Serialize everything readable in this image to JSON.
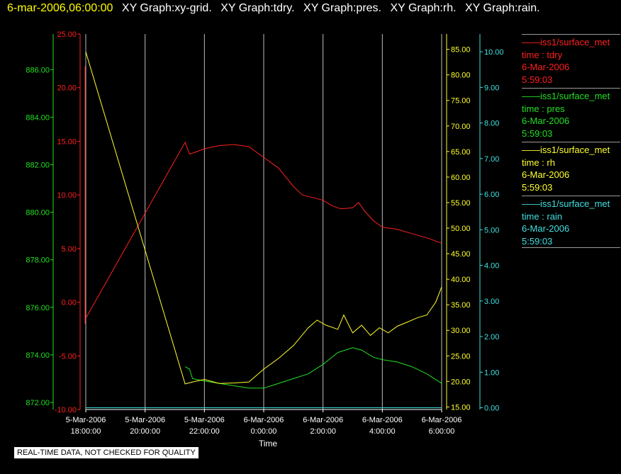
{
  "header": {
    "date": "6-mar-2006,06:00:00",
    "items": [
      "XY Graph:xy-grid.",
      "XY Graph:tdry.",
      "XY Graph:pres.",
      "XY Graph:rh.",
      "XY Graph:rain."
    ]
  },
  "legend": [
    {
      "dash": "——",
      "name": "iss1/surface_met",
      "var": "time : tdry",
      "date": "6-Mar-2006",
      "time": "5:59:03",
      "color": "#ff2020"
    },
    {
      "dash": "——",
      "name": "iss1/surface_met",
      "var": "time : pres",
      "date": "6-Mar-2006",
      "time": "5:59:03",
      "color": "#22e022"
    },
    {
      "dash": "——",
      "name": "iss1/surface_met",
      "var": "time : rh",
      "date": "6-Mar-2006",
      "time": "5:59:03",
      "color": "#ffff30"
    },
    {
      "dash": "——",
      "name": "iss1/surface_met",
      "var": "time : rain",
      "date": "6-Mar-2006",
      "time": "5:59:03",
      "color": "#40e0e0"
    }
  ],
  "notice": "REAL-TIME DATA, NOT CHECKED FOR QUALITY",
  "chart_data": {
    "type": "line",
    "xlabel": "Time",
    "x_ticks": [
      {
        "line1": "5-Mar-2006",
        "line2": "18:00:00",
        "h": 18
      },
      {
        "line1": "5-Mar-2006",
        "line2": "20:00:00",
        "h": 20
      },
      {
        "line1": "5-Mar-2006",
        "line2": "22:00:00",
        "h": 22
      },
      {
        "line1": "6-Mar-2006",
        "line2": "0:00:00",
        "h": 24
      },
      {
        "line1": "6-Mar-2006",
        "line2": "2:00:00",
        "h": 26
      },
      {
        "line1": "6-Mar-2006",
        "line2": "4:00:00",
        "h": 28
      },
      {
        "line1": "6-Mar-2006",
        "line2": "6:00:00",
        "h": 30
      }
    ],
    "xlim_hours": [
      18,
      30
    ],
    "grid": "vertical",
    "axes": {
      "tdry": {
        "color": "#ff2020",
        "ylim": [
          -10,
          25
        ],
        "ticks": [
          "-10.00",
          "-5.00",
          "0.00",
          "5.00",
          "10.00",
          "15.00",
          "20.00",
          "25.00"
        ],
        "tick_values": [
          -10,
          -5,
          0,
          5,
          10,
          15,
          20,
          25
        ]
      },
      "pres": {
        "color": "#22e022",
        "ylim": [
          871.7,
          887.5
        ],
        "ticks": [
          "872.00",
          "874.00",
          "876.00",
          "878.00",
          "880.00",
          "882.00",
          "884.00",
          "886.00"
        ],
        "tick_values": [
          872,
          874,
          876,
          878,
          880,
          882,
          884,
          886
        ]
      },
      "rh": {
        "color": "#ffff30",
        "ylim": [
          14.5,
          88
        ],
        "ticks": [
          "15.00",
          "20.00",
          "25.00",
          "30.00",
          "35.00",
          "40.00",
          "45.00",
          "50.00",
          "55.00",
          "60.00",
          "65.00",
          "70.00",
          "75.00",
          "80.00",
          "85.00"
        ],
        "tick_values": [
          15,
          20,
          25,
          30,
          35,
          40,
          45,
          50,
          55,
          60,
          65,
          70,
          75,
          80,
          85
        ]
      },
      "rain": {
        "color": "#40e0e0",
        "ylim": [
          -0.05,
          10.5
        ],
        "ticks": [
          "0.00",
          "1.00",
          "2.00",
          "3.00",
          "4.00",
          "5.00",
          "6.00",
          "7.00",
          "8.00",
          "9.00",
          "10.00"
        ],
        "tick_values": [
          0,
          1,
          2,
          3,
          4,
          5,
          6,
          7,
          8,
          9,
          10
        ]
      }
    },
    "series": [
      {
        "name": "time : tdry",
        "axis": "tdry",
        "color": "#ff2020",
        "points": [
          [
            18.0,
            -1.5
          ],
          [
            21.35,
            14.9
          ],
          [
            21.5,
            13.8
          ],
          [
            21.8,
            14.1
          ],
          [
            22.0,
            14.3
          ],
          [
            22.5,
            14.6
          ],
          [
            23.0,
            14.7
          ],
          [
            23.5,
            14.5
          ],
          [
            24.0,
            13.5
          ],
          [
            24.5,
            12.5
          ],
          [
            25.0,
            10.8
          ],
          [
            25.3,
            10.0
          ],
          [
            25.6,
            9.8
          ],
          [
            26.0,
            9.5
          ],
          [
            26.3,
            9.0
          ],
          [
            26.6,
            8.7
          ],
          [
            27.0,
            8.8
          ],
          [
            27.2,
            9.3
          ],
          [
            27.4,
            8.5
          ],
          [
            27.7,
            7.6
          ],
          [
            28.0,
            7.0
          ],
          [
            28.5,
            6.8
          ],
          [
            29.0,
            6.4
          ],
          [
            29.5,
            6.0
          ],
          [
            30.0,
            5.5
          ]
        ]
      },
      {
        "name": "time : pres",
        "axis": "pres",
        "color": "#22e022",
        "points": [
          [
            21.35,
            873.5
          ],
          [
            21.5,
            873.4
          ],
          [
            21.6,
            873.0
          ],
          [
            22.0,
            872.9
          ],
          [
            22.5,
            872.8
          ],
          [
            23.0,
            872.7
          ],
          [
            23.5,
            872.6
          ],
          [
            24.0,
            872.6
          ],
          [
            24.5,
            872.8
          ],
          [
            25.0,
            873.0
          ],
          [
            25.5,
            873.2
          ],
          [
            26.0,
            873.6
          ],
          [
            26.5,
            874.1
          ],
          [
            27.0,
            874.3
          ],
          [
            27.3,
            874.2
          ],
          [
            27.7,
            873.9
          ],
          [
            28.0,
            873.8
          ],
          [
            28.5,
            873.7
          ],
          [
            29.0,
            873.5
          ],
          [
            29.5,
            873.2
          ],
          [
            30.0,
            872.8
          ]
        ]
      },
      {
        "name": "time : rh",
        "axis": "rh",
        "color": "#ffff30",
        "points": [
          [
            18.0,
            84.5
          ],
          [
            21.35,
            19.5
          ],
          [
            21.6,
            19.9
          ],
          [
            22.0,
            20.4
          ],
          [
            22.5,
            19.6
          ],
          [
            23.0,
            19.7
          ],
          [
            23.5,
            19.9
          ],
          [
            24.0,
            22.4
          ],
          [
            24.5,
            24.5
          ],
          [
            25.0,
            27.0
          ],
          [
            25.5,
            30.5
          ],
          [
            25.8,
            32.0
          ],
          [
            26.1,
            31.0
          ],
          [
            26.5,
            30.2
          ],
          [
            26.7,
            33.0
          ],
          [
            27.0,
            29.5
          ],
          [
            27.3,
            31.0
          ],
          [
            27.6,
            29.0
          ],
          [
            27.9,
            30.5
          ],
          [
            28.2,
            29.5
          ],
          [
            28.5,
            30.8
          ],
          [
            28.8,
            31.5
          ],
          [
            29.2,
            32.5
          ],
          [
            29.5,
            33.0
          ],
          [
            29.8,
            35.5
          ],
          [
            30.0,
            38.5
          ]
        ]
      },
      {
        "name": "time : rain",
        "axis": "rain",
        "color": "#40e0e0",
        "points": [
          [
            18.0,
            0.0
          ],
          [
            30.0,
            0.0
          ]
        ]
      }
    ]
  }
}
